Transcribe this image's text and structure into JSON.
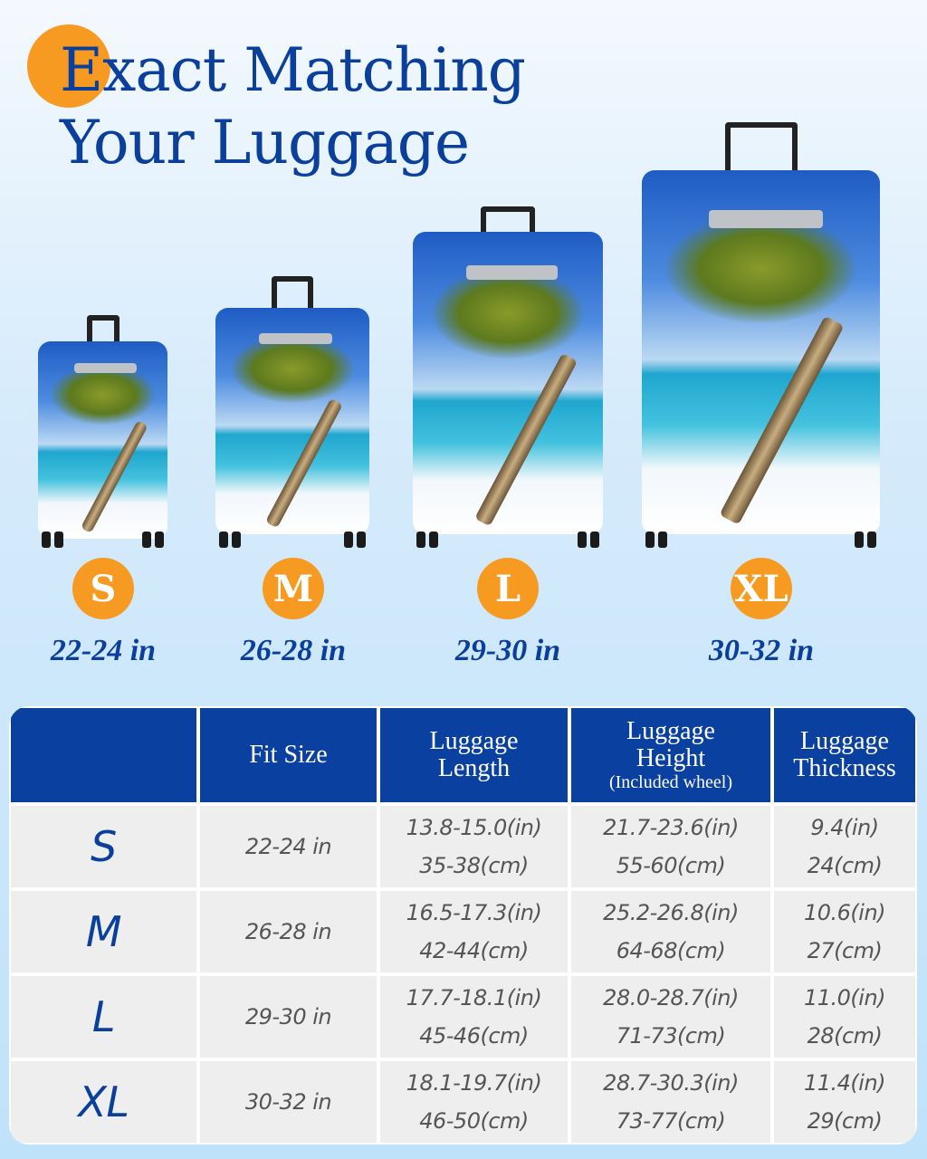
{
  "title": {
    "line1": "Exact Matching",
    "line2": "Your Luggage"
  },
  "colors": {
    "accent": "#f79a21",
    "brand_blue": "#0a40a0"
  },
  "sizes": [
    {
      "label": "S",
      "range": "22-24 in"
    },
    {
      "label": "M",
      "range": "26-28 in"
    },
    {
      "label": "L",
      "range": "29-30 in"
    },
    {
      "label": "XL",
      "range": "30-32 in"
    }
  ],
  "table": {
    "headers": [
      {
        "main": "",
        "sub": ""
      },
      {
        "main": "Fit Size",
        "sub": ""
      },
      {
        "main": "Luggage Length",
        "sub": ""
      },
      {
        "main": "Luggage Height",
        "sub": "(Included wheel)"
      },
      {
        "main": "Luggage Thickness",
        "sub": ""
      }
    ],
    "rows": [
      {
        "size": "S",
        "fit": "22-24 in",
        "length_in": "13.8-15.0(in)",
        "length_cm": "35-38(cm)",
        "height_in": "21.7-23.6(in)",
        "height_cm": "55-60(cm)",
        "thick_in": "9.4(in)",
        "thick_cm": "24(cm)"
      },
      {
        "size": "M",
        "fit": "26-28 in",
        "length_in": "16.5-17.3(in)",
        "length_cm": "42-44(cm)",
        "height_in": "25.2-26.8(in)",
        "height_cm": "64-68(cm)",
        "thick_in": "10.6(in)",
        "thick_cm": "27(cm)"
      },
      {
        "size": "L",
        "fit": "29-30 in",
        "length_in": "17.7-18.1(in)",
        "length_cm": "45-46(cm)",
        "height_in": "28.0-28.7(in)",
        "height_cm": "71-73(cm)",
        "thick_in": "11.0(in)",
        "thick_cm": "28(cm)"
      },
      {
        "size": "XL",
        "fit": "30-32 in",
        "length_in": "18.1-19.7(in)",
        "length_cm": "46-50(cm)",
        "height_in": "28.7-30.3(in)",
        "height_cm": "73-77(cm)",
        "thick_in": "11.4(in)",
        "thick_cm": "29(cm)"
      }
    ]
  }
}
